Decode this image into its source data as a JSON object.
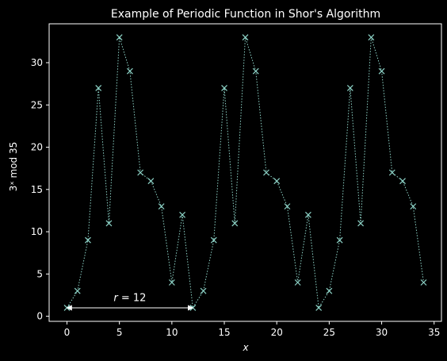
{
  "chart_data": {
    "type": "line",
    "title": "Example of Periodic Function in Shor's Algorithm",
    "xlabel": "x",
    "ylabel": "3ˣ mod 35",
    "xlim": [
      -1.7,
      35.7
    ],
    "ylim": [
      -0.6,
      34.6
    ],
    "xticks": [
      0,
      5,
      10,
      15,
      20,
      25,
      30,
      35
    ],
    "yticks": [
      0,
      5,
      10,
      15,
      20,
      25,
      30
    ],
    "grid": false,
    "colors": {
      "background": "#000000",
      "series": "#8dd3c7",
      "foreground": "#ffffff"
    },
    "series": [
      {
        "marker": "x",
        "linestyle": "dotted",
        "x": [
          0,
          1,
          2,
          3,
          4,
          5,
          6,
          7,
          8,
          9,
          10,
          11,
          12,
          13,
          14,
          15,
          16,
          17,
          18,
          19,
          20,
          21,
          22,
          23,
          24,
          25,
          26,
          27,
          28,
          29,
          30,
          31,
          32,
          33,
          34
        ],
        "values": [
          1,
          3,
          9,
          27,
          11,
          33,
          29,
          17,
          16,
          13,
          4,
          12,
          1,
          3,
          9,
          27,
          11,
          33,
          29,
          17,
          16,
          13,
          4,
          12,
          1,
          3,
          9,
          27,
          11,
          33,
          29,
          17,
          16,
          13,
          4
        ]
      }
    ],
    "annotation": {
      "text_var": "r",
      "text_rest": " = 12",
      "arrow_from": [
        0,
        1
      ],
      "arrow_to": [
        12,
        1
      ],
      "text_at": [
        6,
        1.8
      ]
    }
  }
}
